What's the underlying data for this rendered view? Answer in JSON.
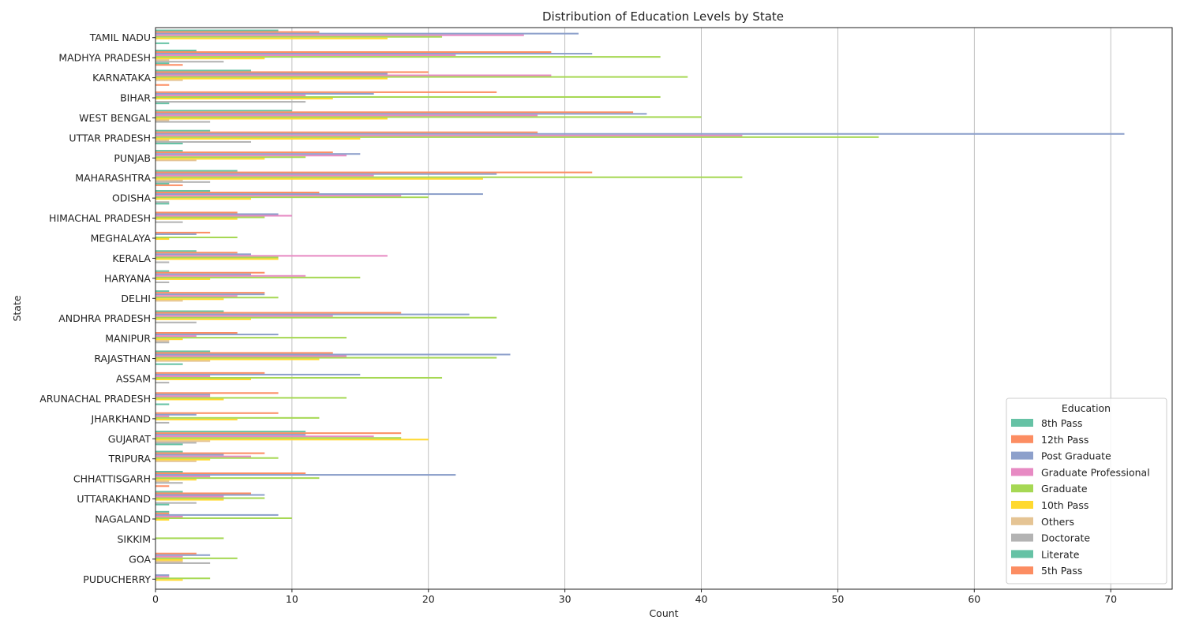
{
  "chart_data": {
    "type": "bar",
    "orientation": "horizontal",
    "title": "Distribution of Education Levels by State",
    "xlabel": "Count",
    "ylabel": "State",
    "xlim": [
      0,
      74.5
    ],
    "xticks": [
      0,
      10,
      20,
      30,
      40,
      50,
      60,
      70
    ],
    "grid": "x",
    "legend": {
      "title": "Education",
      "placement": "lower-right"
    },
    "categories": [
      "TAMIL NADU",
      "MADHYA PRADESH",
      "KARNATAKA",
      "BIHAR",
      "WEST BENGAL",
      "UTTAR PRADESH",
      "PUNJAB",
      "MAHARASHTRA",
      "ODISHA",
      "HIMACHAL PRADESH",
      "MEGHALAYA",
      "KERALA",
      "HARYANA",
      "DELHI",
      "ANDHRA PRADESH",
      "MANIPUR",
      "RAJASTHAN",
      "ASSAM",
      "ARUNACHAL PRADESH",
      "JHARKHAND",
      "GUJARAT",
      "TRIPURA",
      "CHHATTISGARH",
      "UTTARAKHAND",
      "NAGALAND",
      "SIKKIM",
      "GOA",
      "PUDUCHERRY"
    ],
    "series": [
      {
        "name": "8th Pass",
        "color": "#66c2a5",
        "values": [
          9,
          3,
          7,
          0,
          10,
          4,
          2,
          6,
          4,
          0,
          0,
          3,
          1,
          1,
          5,
          0,
          4,
          0,
          0,
          0,
          11,
          2,
          2,
          2,
          1,
          0,
          0,
          0
        ]
      },
      {
        "name": "12th Pass",
        "color": "#fc8d62",
        "values": [
          12,
          29,
          20,
          25,
          35,
          28,
          13,
          32,
          12,
          6,
          4,
          6,
          8,
          8,
          18,
          6,
          13,
          8,
          9,
          9,
          18,
          8,
          11,
          7,
          1,
          0,
          3,
          0
        ]
      },
      {
        "name": "Post Graduate",
        "color": "#8da0cb",
        "values": [
          31,
          32,
          17,
          16,
          36,
          71,
          15,
          25,
          24,
          9,
          3,
          7,
          7,
          8,
          23,
          9,
          26,
          15,
          4,
          3,
          11,
          5,
          22,
          8,
          9,
          0,
          4,
          1
        ]
      },
      {
        "name": "Graduate Professional",
        "color": "#e78ac3",
        "values": [
          27,
          22,
          29,
          11,
          28,
          43,
          14,
          16,
          18,
          10,
          0,
          17,
          11,
          6,
          13,
          3,
          14,
          4,
          4,
          1,
          16,
          7,
          4,
          5,
          2,
          0,
          2,
          1
        ]
      },
      {
        "name": "Graduate",
        "color": "#a6d854",
        "values": [
          21,
          37,
          39,
          37,
          40,
          53,
          11,
          43,
          20,
          8,
          6,
          9,
          15,
          9,
          25,
          14,
          25,
          21,
          14,
          12,
          18,
          9,
          12,
          8,
          10,
          5,
          6,
          4
        ]
      },
      {
        "name": "10th Pass",
        "color": "#ffd92f",
        "values": [
          17,
          8,
          17,
          13,
          17,
          15,
          8,
          24,
          7,
          6,
          1,
          9,
          4,
          5,
          7,
          2,
          12,
          7,
          5,
          6,
          20,
          4,
          3,
          5,
          1,
          0,
          2,
          2
        ]
      },
      {
        "name": "Others",
        "color": "#e5c494",
        "values": [
          0,
          1,
          2,
          0,
          1,
          1,
          3,
          2,
          0,
          0,
          0,
          0,
          0,
          2,
          0,
          1,
          4,
          0,
          0,
          0,
          4,
          3,
          1,
          0,
          0,
          0,
          2,
          0
        ]
      },
      {
        "name": "Doctorate",
        "color": "#b3b3b3",
        "values": [
          0,
          5,
          0,
          11,
          4,
          7,
          0,
          4,
          1,
          2,
          0,
          1,
          1,
          0,
          3,
          1,
          0,
          1,
          0,
          1,
          3,
          0,
          2,
          3,
          0,
          0,
          4,
          0
        ]
      },
      {
        "name": "Literate",
        "color": "#66c2a5",
        "values": [
          1,
          1,
          0,
          1,
          0,
          2,
          0,
          1,
          1,
          0,
          0,
          0,
          0,
          0,
          0,
          0,
          2,
          0,
          1,
          0,
          2,
          0,
          0,
          1,
          0,
          0,
          0,
          0
        ]
      },
      {
        "name": "5th Pass",
        "color": "#fc8d62",
        "values": [
          0,
          2,
          1,
          0,
          0,
          0,
          0,
          2,
          0,
          0,
          0,
          0,
          0,
          0,
          0,
          0,
          0,
          0,
          0,
          0,
          0,
          0,
          1,
          0,
          0,
          0,
          0,
          0
        ]
      }
    ]
  }
}
